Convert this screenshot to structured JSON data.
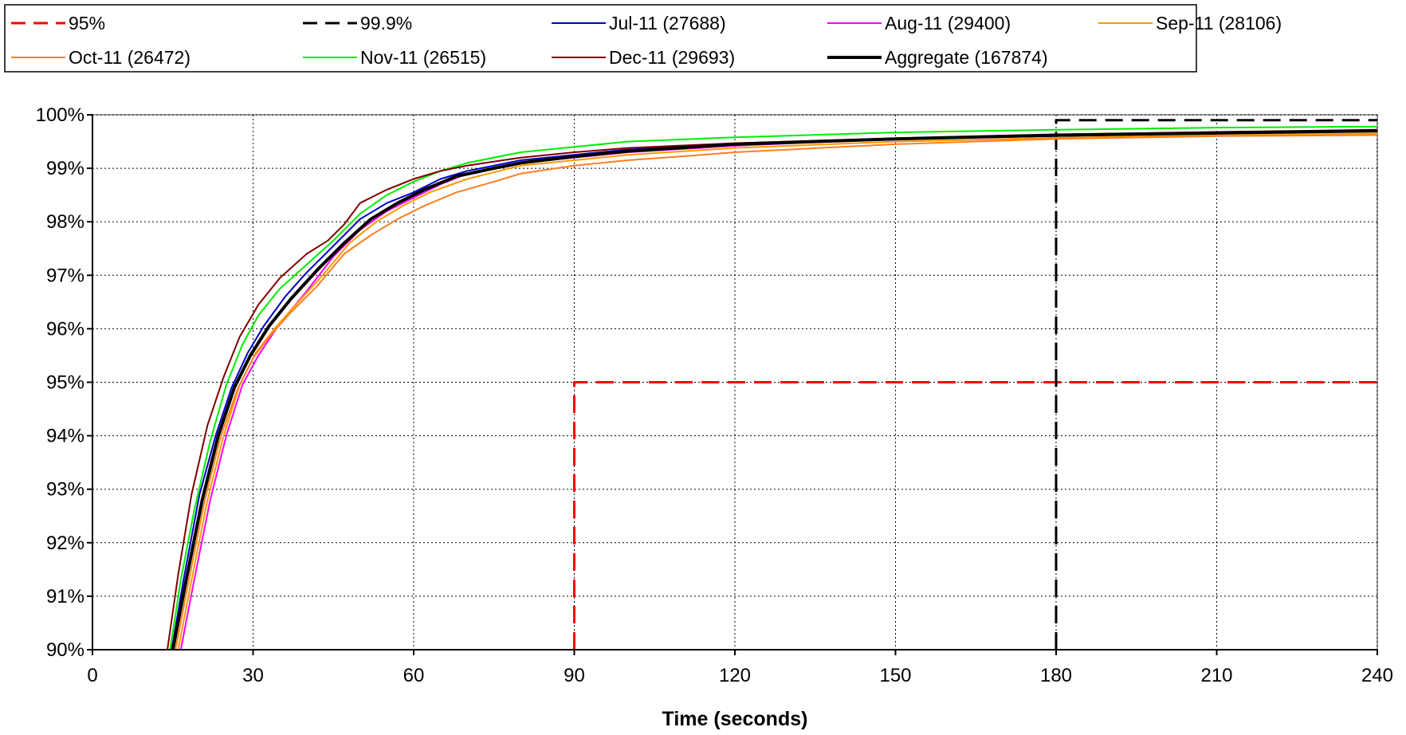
{
  "chart_data": {
    "type": "line",
    "title": "",
    "xlabel": "Time (seconds)",
    "ylabel": "",
    "xlim": [
      0,
      240
    ],
    "ylim": [
      90,
      100
    ],
    "x_ticks": [
      "0",
      "30",
      "60",
      "90",
      "120",
      "150",
      "180",
      "210",
      "240"
    ],
    "y_ticks": [
      "90%",
      "91%",
      "92%",
      "93%",
      "94%",
      "95%",
      "96%",
      "97%",
      "98%",
      "99%",
      "100%"
    ],
    "grid": true,
    "legend_position": "top",
    "series": [
      {
        "name": "95%",
        "color": "#ff0000",
        "dash": "dash",
        "width": 3,
        "points": [
          [
            90,
            90
          ],
          [
            90,
            95
          ],
          [
            240,
            95
          ]
        ]
      },
      {
        "name": "99.9%",
        "color": "#000000",
        "dash": "dash",
        "width": 3,
        "points": [
          [
            180,
            90
          ],
          [
            180,
            99.9
          ],
          [
            240,
            99.9
          ]
        ]
      },
      {
        "name": "Jul-11 (27688)",
        "color": "#0000cc",
        "dash": "solid",
        "width": 2,
        "points": [
          [
            14.8,
            90
          ],
          [
            17,
            91.3
          ],
          [
            20,
            92.9
          ],
          [
            23,
            94.0
          ],
          [
            26,
            94.9
          ],
          [
            29,
            95.55
          ],
          [
            32,
            96.05
          ],
          [
            36,
            96.6
          ],
          [
            40,
            97.05
          ],
          [
            45,
            97.55
          ],
          [
            50,
            98.05
          ],
          [
            55,
            98.35
          ],
          [
            60,
            98.55
          ],
          [
            65,
            98.8
          ],
          [
            70,
            98.95
          ],
          [
            80,
            99.15
          ],
          [
            90,
            99.25
          ],
          [
            100,
            99.35
          ],
          [
            120,
            99.45
          ],
          [
            150,
            99.55
          ],
          [
            180,
            99.6
          ],
          [
            210,
            99.65
          ],
          [
            240,
            99.7
          ]
        ]
      },
      {
        "name": "Aug-11 (29400)",
        "color": "#ff00ff",
        "dash": "solid",
        "width": 2,
        "points": [
          [
            16.5,
            90
          ],
          [
            19,
            91.3
          ],
          [
            22,
            92.8
          ],
          [
            25,
            94.0
          ],
          [
            28,
            94.95
          ],
          [
            31,
            95.5
          ],
          [
            35,
            96.1
          ],
          [
            40,
            96.7
          ],
          [
            45,
            97.35
          ],
          [
            50,
            97.85
          ],
          [
            55,
            98.2
          ],
          [
            60,
            98.45
          ],
          [
            65,
            98.7
          ],
          [
            70,
            98.9
          ],
          [
            80,
            99.1
          ],
          [
            90,
            99.2
          ],
          [
            100,
            99.3
          ],
          [
            120,
            99.42
          ],
          [
            150,
            99.55
          ],
          [
            180,
            99.62
          ],
          [
            210,
            99.67
          ],
          [
            240,
            99.7
          ]
        ]
      },
      {
        "name": "Sep-11 (28106)",
        "color": "#ff9900",
        "dash": "solid",
        "width": 2,
        "points": [
          [
            16,
            90
          ],
          [
            18.5,
            91.3
          ],
          [
            21.5,
            92.8
          ],
          [
            24.5,
            94.0
          ],
          [
            27.5,
            94.95
          ],
          [
            30.5,
            95.55
          ],
          [
            34,
            96.0
          ],
          [
            38,
            96.45
          ],
          [
            43,
            97.0
          ],
          [
            48,
            97.6
          ],
          [
            53,
            98.0
          ],
          [
            58,
            98.3
          ],
          [
            63,
            98.55
          ],
          [
            70,
            98.8
          ],
          [
            80,
            99.05
          ],
          [
            90,
            99.15
          ],
          [
            100,
            99.25
          ],
          [
            120,
            99.38
          ],
          [
            150,
            99.5
          ],
          [
            180,
            99.57
          ],
          [
            210,
            99.62
          ],
          [
            240,
            99.65
          ]
        ]
      },
      {
        "name": "Oct-11 (26472)",
        "color": "#ff7f1f",
        "dash": "solid",
        "width": 2,
        "points": [
          [
            15.5,
            90
          ],
          [
            18,
            91.3
          ],
          [
            21,
            92.8
          ],
          [
            24,
            94.0
          ],
          [
            27,
            94.85
          ],
          [
            30,
            95.45
          ],
          [
            33,
            95.85
          ],
          [
            37,
            96.3
          ],
          [
            42,
            96.8
          ],
          [
            47,
            97.4
          ],
          [
            52,
            97.75
          ],
          [
            57,
            98.05
          ],
          [
            62,
            98.3
          ],
          [
            68,
            98.55
          ],
          [
            75,
            98.75
          ],
          [
            80,
            98.9
          ],
          [
            90,
            99.05
          ],
          [
            100,
            99.15
          ],
          [
            110,
            99.22
          ],
          [
            120,
            99.3
          ],
          [
            150,
            99.45
          ],
          [
            180,
            99.55
          ],
          [
            210,
            99.6
          ],
          [
            240,
            99.62
          ]
        ]
      },
      {
        "name": "Nov-11 (26515)",
        "color": "#00ee00",
        "dash": "solid",
        "width": 2,
        "points": [
          [
            14.5,
            90
          ],
          [
            16.5,
            91.3
          ],
          [
            19,
            92.6
          ],
          [
            22,
            93.9
          ],
          [
            25,
            94.95
          ],
          [
            28,
            95.7
          ],
          [
            31,
            96.25
          ],
          [
            35,
            96.75
          ],
          [
            40,
            97.2
          ],
          [
            45,
            97.65
          ],
          [
            50,
            98.15
          ],
          [
            55,
            98.5
          ],
          [
            60,
            98.75
          ],
          [
            65,
            98.95
          ],
          [
            70,
            99.1
          ],
          [
            80,
            99.3
          ],
          [
            90,
            99.4
          ],
          [
            100,
            99.5
          ],
          [
            120,
            99.58
          ],
          [
            150,
            99.67
          ],
          [
            180,
            99.72
          ],
          [
            210,
            99.76
          ],
          [
            240,
            99.78
          ]
        ]
      },
      {
        "name": "Dec-11 (29693)",
        "color": "#800000",
        "dash": "solid",
        "width": 2,
        "points": [
          [
            14,
            90
          ],
          [
            16,
            91.4
          ],
          [
            18.5,
            92.9
          ],
          [
            21.5,
            94.2
          ],
          [
            24.5,
            95.1
          ],
          [
            27.5,
            95.85
          ],
          [
            31,
            96.45
          ],
          [
            35,
            96.95
          ],
          [
            40,
            97.4
          ],
          [
            44,
            97.65
          ],
          [
            47,
            97.95
          ],
          [
            50,
            98.35
          ],
          [
            55,
            98.6
          ],
          [
            60,
            98.8
          ],
          [
            65,
            98.95
          ],
          [
            70,
            99.05
          ],
          [
            80,
            99.2
          ],
          [
            90,
            99.3
          ],
          [
            100,
            99.38
          ],
          [
            120,
            99.47
          ],
          [
            150,
            99.56
          ],
          [
            180,
            99.63
          ],
          [
            210,
            99.68
          ],
          [
            240,
            99.72
          ]
        ]
      },
      {
        "name": "Aggregate (167874)",
        "color": "#000000",
        "dash": "solid",
        "width": 4,
        "points": [
          [
            15,
            90
          ],
          [
            17.5,
            91.3
          ],
          [
            20.5,
            92.8
          ],
          [
            23.5,
            94.0
          ],
          [
            26.5,
            94.9
          ],
          [
            29.5,
            95.5
          ],
          [
            33,
            96.05
          ],
          [
            37,
            96.55
          ],
          [
            42,
            97.1
          ],
          [
            47,
            97.6
          ],
          [
            52,
            98.05
          ],
          [
            57,
            98.35
          ],
          [
            62,
            98.6
          ],
          [
            68,
            98.85
          ],
          [
            75,
            99.0
          ],
          [
            80,
            99.1
          ],
          [
            90,
            99.22
          ],
          [
            100,
            99.32
          ],
          [
            120,
            99.45
          ],
          [
            150,
            99.55
          ],
          [
            180,
            99.62
          ],
          [
            210,
            99.66
          ],
          [
            240,
            99.7
          ]
        ]
      }
    ]
  }
}
